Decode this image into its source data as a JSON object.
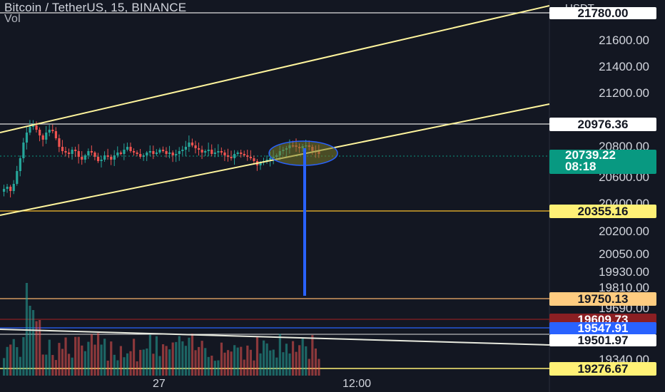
{
  "header": {
    "symbol": "Bitcoin / TetherUS, 15, BINANCE",
    "indicator": "Vol"
  },
  "price_axis": {
    "currency": "USDT",
    "labels": [
      "21600.00",
      "21400.00",
      "21200.00",
      "20800.00",
      "20600.00",
      "20400.00",
      "20200.00",
      "20050.00",
      "19930.00",
      "19810.00",
      "19690.00",
      "19340.00"
    ]
  },
  "price_tags": {
    "top_white": "21780.00",
    "level_1": "20976.36",
    "current": "20739.22",
    "countdown": "08:18",
    "level_2": "20355.16",
    "level_3": "19750.13",
    "level_4": "19609.73",
    "level_5": "19547.91",
    "level_6": "19501.97",
    "level_7": "19276.67"
  },
  "time_axis": {
    "labels": [
      "27",
      "12:00"
    ]
  },
  "colors": {
    "background": "#131722",
    "up": "#26a69a",
    "down": "#ef5350",
    "trendline": "#fff59d",
    "support": "#fbc02d",
    "target_arrow": "#2962ff",
    "current_tag": "#089981"
  }
}
